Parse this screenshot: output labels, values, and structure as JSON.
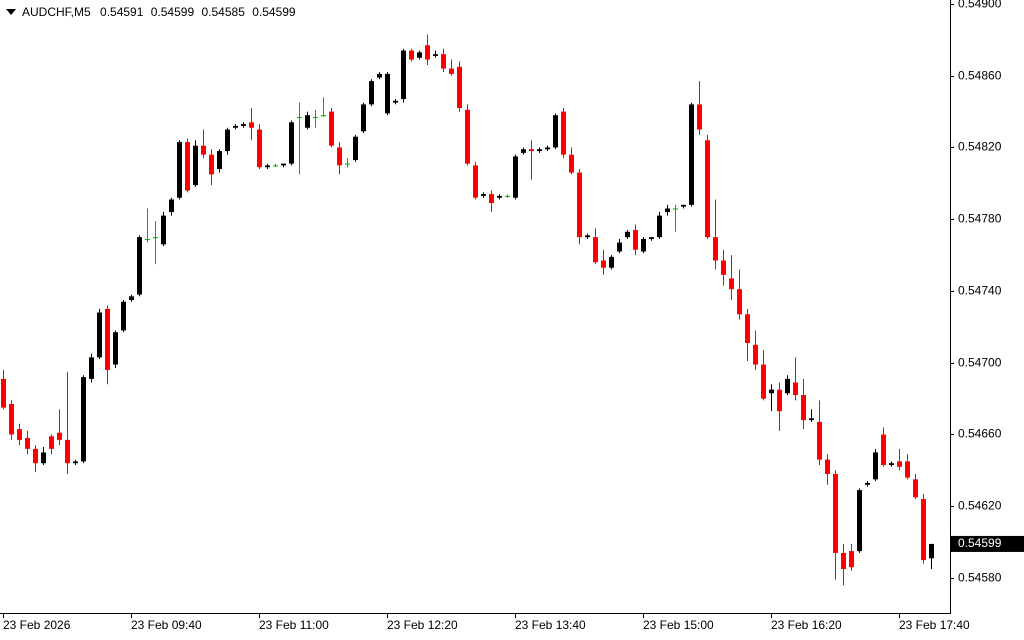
{
  "chart_data": {
    "type": "candlestick",
    "symbol": "AUDCHF,M5",
    "header_values": [
      0.54591,
      0.54599,
      0.54585,
      0.54599
    ],
    "last_price": 0.54599,
    "up_color": "#000000",
    "down_color": "#ff0000",
    "doji_color": "#00b000",
    "ylim": [
      0.545605,
      0.549022
    ],
    "yticks": [
      {
        "value": 0.549,
        "label": "0.54900"
      },
      {
        "value": 0.5486,
        "label": "0.54860"
      },
      {
        "value": 0.5482,
        "label": "0.54820"
      },
      {
        "value": 0.5478,
        "label": "0.54780"
      },
      {
        "value": 0.5474,
        "label": "0.54740"
      },
      {
        "value": 0.547,
        "label": "0.54700"
      },
      {
        "value": 0.5466,
        "label": "0.54660"
      },
      {
        "value": 0.5462,
        "label": "0.54620"
      },
      {
        "value": 0.5458,
        "label": "0.54580"
      }
    ],
    "categories": [
      "23 Feb 2026",
      null,
      null,
      null,
      null,
      null,
      null,
      null,
      null,
      null,
      null,
      null,
      null,
      null,
      null,
      null,
      "23 Feb 09:40",
      null,
      null,
      null,
      null,
      null,
      null,
      null,
      null,
      null,
      null,
      null,
      null,
      null,
      null,
      null,
      "23 Feb 11:00",
      null,
      null,
      null,
      null,
      null,
      null,
      null,
      null,
      null,
      null,
      null,
      null,
      null,
      null,
      null,
      "23 Feb 12:20",
      null,
      null,
      null,
      null,
      null,
      null,
      null,
      null,
      null,
      null,
      null,
      null,
      null,
      null,
      null,
      "23 Feb 13:40",
      null,
      null,
      null,
      null,
      null,
      null,
      null,
      null,
      null,
      null,
      null,
      null,
      null,
      null,
      null,
      "23 Feb 15:00",
      null,
      null,
      null,
      null,
      null,
      null,
      null,
      null,
      null,
      null,
      null,
      null,
      null,
      null,
      null,
      "23 Feb 16:20",
      null,
      null,
      null,
      null,
      null,
      null,
      null,
      null,
      null,
      null,
      null,
      null,
      null,
      null,
      null,
      "23 Feb 17:40",
      null,
      null,
      null,
      null
    ],
    "open": [
      0.54691,
      0.54677,
      0.54663,
      0.54658,
      0.54652,
      0.54644,
      0.54659,
      0.54661,
      0.54657,
      0.54644,
      0.54645,
      0.54691,
      0.54703,
      0.5473,
      0.54699,
      0.54718,
      0.54735,
      0.54738,
      0.54769,
      0.5477,
      0.54766,
      0.54784,
      0.54792,
      0.54823,
      0.54799,
      0.54821,
      0.54816,
      0.54808,
      0.54818,
      0.54831,
      0.54832,
      0.54834,
      0.5483,
      0.54809,
      0.5481,
      0.5481,
      0.54811,
      0.54837,
      0.54831,
      0.54837,
      0.54838,
      0.5484,
      0.5482,
      0.54811,
      0.54813,
      0.54829,
      0.54844,
      0.54859,
      0.54839,
      0.54845,
      0.54847,
      0.54874,
      0.5487,
      0.54877,
      0.54871,
      0.54872,
      0.54864,
      0.54865,
      0.54841,
      0.5481,
      0.54793,
      0.54794,
      0.54792,
      0.54793,
      0.54792,
      0.54817,
      0.54819,
      0.54818,
      0.54819,
      0.5482,
      0.5484,
      0.54816,
      0.54806,
      0.5477,
      0.5477,
      0.54757,
      0.54753,
      0.54762,
      0.5477,
      0.54774,
      0.54762,
      0.54769,
      0.5477,
      0.54784,
      0.54786,
      0.54787,
      0.54788,
      0.54844,
      0.54824,
      0.5477,
      0.54757,
      0.54747,
      0.54741,
      0.54727,
      0.5471,
      0.54699,
      0.54683,
      0.54685,
      0.54683,
      0.54689,
      0.54682,
      0.54668,
      0.54667,
      0.54646,
      0.54638,
      0.54594,
      0.54595,
      0.54595,
      0.54632,
      0.54635,
      0.5466,
      0.54643,
      0.54645,
      0.54645,
      0.54635,
      0.54624,
      0.54591
    ],
    "high": [
      0.54696,
      0.54679,
      0.54666,
      0.54662,
      0.54654,
      0.54653,
      0.5466,
      0.54674,
      0.54695,
      0.54646,
      0.54693,
      0.54705,
      0.5473,
      0.54732,
      0.54718,
      0.54735,
      0.54738,
      0.54771,
      0.54786,
      0.54779,
      0.54784,
      0.54792,
      0.54824,
      0.54825,
      0.54824,
      0.5483,
      0.54819,
      0.54819,
      0.54831,
      0.54833,
      0.54834,
      0.54842,
      0.54833,
      0.54811,
      0.54811,
      0.54811,
      0.54835,
      0.54845,
      0.5484,
      0.54841,
      0.54848,
      0.54842,
      0.54823,
      0.54814,
      0.54827,
      0.54845,
      0.54858,
      0.54862,
      0.54862,
      0.54847,
      0.54875,
      0.54875,
      0.54874,
      0.54883,
      0.54874,
      0.54875,
      0.54869,
      0.54868,
      0.54844,
      0.54812,
      0.54795,
      0.54796,
      0.54794,
      0.54794,
      0.54816,
      0.5482,
      0.54824,
      0.5482,
      0.54821,
      0.54839,
      0.54842,
      0.5482,
      0.54808,
      0.54772,
      0.54775,
      0.54763,
      0.5476,
      0.54769,
      0.54774,
      0.54777,
      0.5477,
      0.5477,
      0.54784,
      0.54788,
      0.54788,
      0.54788,
      0.54845,
      0.54857,
      0.54827,
      0.54791,
      0.54763,
      0.5476,
      0.54752,
      0.5473,
      0.54718,
      0.54707,
      0.54688,
      0.54689,
      0.54693,
      0.54703,
      0.54691,
      0.54674,
      0.54679,
      0.54649,
      0.5464,
      0.54599,
      0.54599,
      0.5463,
      0.54634,
      0.54652,
      0.54664,
      0.54645,
      0.54652,
      0.54649,
      0.54638,
      0.54627,
      0.54599
    ],
    "low": [
      0.54674,
      0.54657,
      0.54654,
      0.54649,
      0.54639,
      0.54643,
      0.54649,
      0.54654,
      0.54638,
      0.54643,
      0.54644,
      0.54689,
      0.54702,
      0.54688,
      0.54697,
      0.54717,
      0.54734,
      0.54737,
      0.54767,
      0.54755,
      0.54765,
      0.54782,
      0.54791,
      0.54795,
      0.54798,
      0.54814,
      0.54799,
      0.54806,
      0.54816,
      0.5483,
      0.54831,
      0.54824,
      0.54808,
      0.54808,
      0.54809,
      0.54809,
      0.5481,
      0.54805,
      0.5483,
      0.54831,
      0.54837,
      0.5482,
      0.54805,
      0.54809,
      0.54812,
      0.54828,
      0.54843,
      0.54858,
      0.54838,
      0.54844,
      0.54845,
      0.54868,
      0.54869,
      0.54866,
      0.5487,
      0.54862,
      0.5486,
      0.5484,
      0.5481,
      0.54791,
      0.54792,
      0.54784,
      0.54791,
      0.54792,
      0.54791,
      0.54816,
      0.54802,
      0.54817,
      0.54818,
      0.54819,
      0.54814,
      0.54805,
      0.54766,
      0.54769,
      0.54755,
      0.54749,
      0.54752,
      0.54761,
      0.54769,
      0.5476,
      0.54761,
      0.54768,
      0.54769,
      0.54782,
      0.54773,
      0.54786,
      0.54787,
      0.54827,
      0.54769,
      0.54752,
      0.54743,
      0.54735,
      0.54724,
      0.54701,
      0.54696,
      0.54679,
      0.54673,
      0.54662,
      0.54682,
      0.54679,
      0.54663,
      0.54667,
      0.54643,
      0.54632,
      0.54579,
      0.54576,
      0.54584,
      0.54594,
      0.54631,
      0.54634,
      0.54642,
      0.54642,
      0.5464,
      0.54635,
      0.54624,
      0.54588,
      0.54585
    ],
    "close": [
      0.54675,
      0.5466,
      0.54657,
      0.54652,
      0.54644,
      0.5465,
      0.54652,
      0.54657,
      0.54644,
      0.54645,
      0.54692,
      0.54703,
      0.54728,
      0.54696,
      0.54717,
      0.54734,
      0.54737,
      0.5477,
      0.54769,
      0.5477,
      0.54782,
      0.54791,
      0.54823,
      0.54796,
      0.54821,
      0.54816,
      0.54805,
      0.54818,
      0.5483,
      0.54832,
      0.54833,
      0.54831,
      0.54809,
      0.5481,
      0.5481,
      0.54811,
      0.54834,
      0.54837,
      0.54838,
      0.54837,
      0.54838,
      0.54821,
      0.5481,
      0.54811,
      0.54826,
      0.54844,
      0.54857,
      0.54861,
      0.54861,
      0.54846,
      0.54874,
      0.54869,
      0.54873,
      0.54869,
      0.54872,
      0.54864,
      0.54861,
      0.54842,
      0.54811,
      0.54792,
      0.54794,
      0.54789,
      0.54793,
      0.54793,
      0.54815,
      0.54819,
      0.54818,
      0.54819,
      0.5482,
      0.54838,
      0.54816,
      0.54806,
      0.5477,
      0.54771,
      0.54756,
      0.54753,
      0.54759,
      0.54767,
      0.54773,
      0.54763,
      0.54769,
      0.5477,
      0.54782,
      0.54786,
      0.54786,
      0.54788,
      0.54844,
      0.5483,
      0.5477,
      0.54757,
      0.54749,
      0.54741,
      0.54727,
      0.54711,
      0.54699,
      0.5468,
      0.54685,
      0.54673,
      0.54691,
      0.54682,
      0.54668,
      0.54669,
      0.54646,
      0.54638,
      0.54594,
      0.54585,
      0.54586,
      0.54629,
      0.54633,
      0.5465,
      0.54643,
      0.54644,
      0.54642,
      0.54636,
      0.54625,
      0.5459,
      0.54599
    ]
  }
}
